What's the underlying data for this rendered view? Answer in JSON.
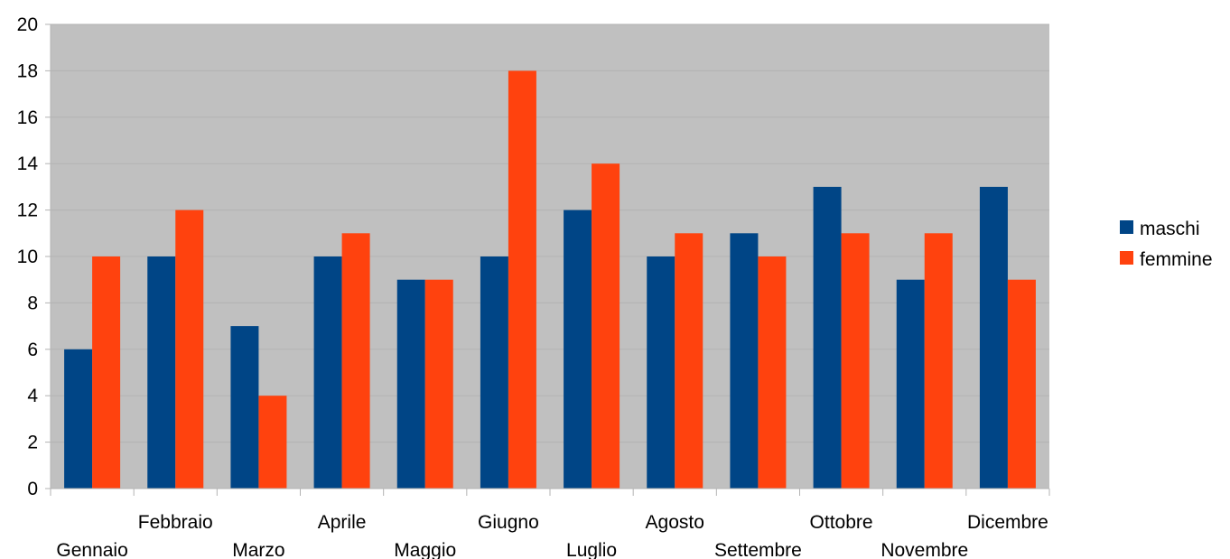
{
  "chart_data": {
    "type": "bar",
    "categories": [
      "Gennaio",
      "Febbraio",
      "Marzo",
      "Aprile",
      "Maggio",
      "Giugno",
      "Luglio",
      "Agosto",
      "Settembre",
      "Ottobre",
      "Novembre",
      "Dicembre"
    ],
    "series": [
      {
        "name": "maschi",
        "color": "#004586",
        "values": [
          6,
          10,
          7,
          10,
          9,
          10,
          12,
          10,
          11,
          13,
          9,
          13
        ]
      },
      {
        "name": "femmine",
        "color": "#ff420e",
        "values": [
          10,
          12,
          4,
          11,
          9,
          18,
          14,
          11,
          10,
          11,
          11,
          9
        ]
      }
    ],
    "title": "",
    "xlabel": "",
    "ylabel": "",
    "ylim": [
      0,
      20
    ],
    "yticks": [
      "0",
      "2",
      "4",
      "6",
      "8",
      "10",
      "12",
      "14",
      "16",
      "18",
      "20"
    ],
    "grid": true,
    "plot_background": "#c0c0c0",
    "legend_position": "right"
  }
}
